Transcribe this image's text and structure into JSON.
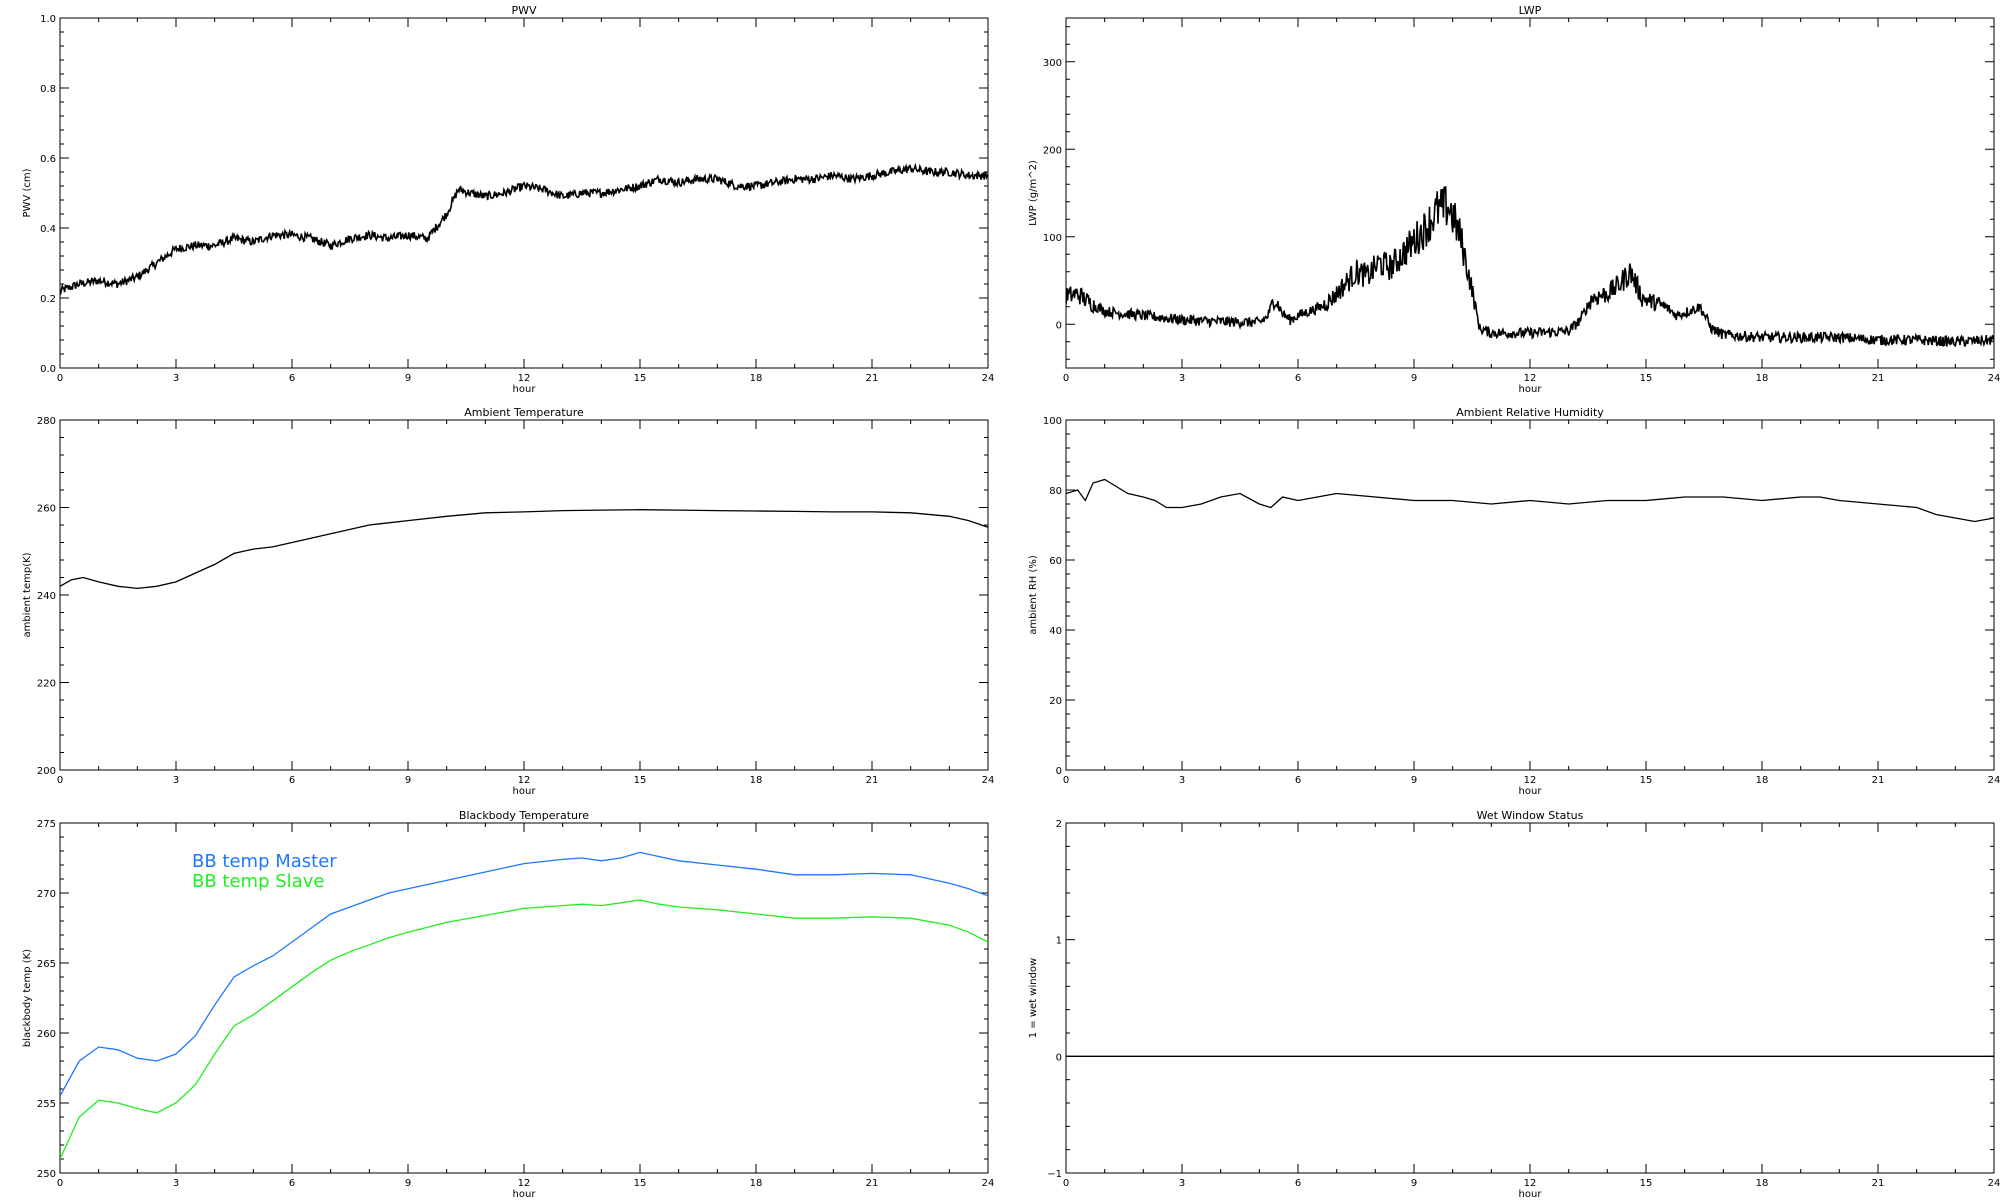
{
  "chart_data": [
    {
      "id": "pwv",
      "type": "line",
      "title": "PWV",
      "xlabel": "hour",
      "ylabel": "PWV (cm)",
      "xlim": [
        0,
        24
      ],
      "ylim": [
        0.0,
        1.0
      ],
      "xticks": [
        "0",
        "3",
        "6",
        "9",
        "12",
        "15",
        "18",
        "21",
        "24"
      ],
      "yticks": [
        "0.0",
        "0.2",
        "0.4",
        "0.6",
        "0.8",
        "1.0"
      ],
      "series": [
        {
          "color": "#000000",
          "noisy": true,
          "x": [
            0,
            0.5,
            1,
            1.5,
            2,
            2.5,
            3,
            3.5,
            4,
            4.5,
            5,
            5.5,
            6,
            6.5,
            7,
            7.5,
            8,
            8.5,
            9,
            9.5,
            10,
            10.3,
            10.6,
            11,
            11.5,
            12,
            12.5,
            13,
            13.5,
            14,
            14.5,
            15,
            15.5,
            16,
            16.5,
            17,
            17.5,
            18,
            18.5,
            19,
            19.5,
            20,
            20.5,
            21,
            21.5,
            22,
            22.5,
            23,
            23.5,
            24
          ],
          "y": [
            0.22,
            0.24,
            0.25,
            0.24,
            0.26,
            0.3,
            0.34,
            0.35,
            0.35,
            0.37,
            0.36,
            0.38,
            0.38,
            0.37,
            0.35,
            0.37,
            0.38,
            0.37,
            0.38,
            0.37,
            0.44,
            0.51,
            0.5,
            0.49,
            0.5,
            0.52,
            0.51,
            0.49,
            0.5,
            0.5,
            0.51,
            0.52,
            0.54,
            0.53,
            0.54,
            0.54,
            0.52,
            0.52,
            0.53,
            0.54,
            0.54,
            0.55,
            0.54,
            0.55,
            0.56,
            0.57,
            0.56,
            0.56,
            0.55,
            0.55
          ]
        }
      ]
    },
    {
      "id": "lwp",
      "type": "line",
      "title": "LWP",
      "xlabel": "hour",
      "ylabel": "LWP (g/m^2)",
      "xlim": [
        0,
        24
      ],
      "ylim": [
        -50,
        350
      ],
      "xticks": [
        "0",
        "3",
        "6",
        "9",
        "12",
        "15",
        "18",
        "21",
        "24"
      ],
      "yticks": [
        "0",
        "100",
        "200",
        "300"
      ],
      "ytick_values": [
        0,
        100,
        200,
        300
      ],
      "series": [
        {
          "color": "#000000",
          "noisy": true,
          "x": [
            0,
            0.3,
            0.6,
            1,
            1.5,
            2,
            3,
            4,
            5,
            5.2,
            5.4,
            5.6,
            5.8,
            6,
            6.3,
            6.6,
            6.9,
            7.2,
            7.5,
            7.8,
            8.1,
            8.4,
            8.7,
            9,
            9.3,
            9.6,
            9.9,
            10.2,
            10.5,
            10.7,
            11,
            12,
            13,
            13.3,
            13.6,
            14,
            14.3,
            14.6,
            14.9,
            15.2,
            15.5,
            15.8,
            16.1,
            16.4,
            16.7,
            17,
            18,
            19,
            20,
            21,
            22,
            23,
            24
          ],
          "y": [
            32,
            35,
            25,
            15,
            12,
            10,
            5,
            3,
            2,
            8,
            30,
            12,
            5,
            10,
            15,
            20,
            30,
            45,
            60,
            55,
            70,
            65,
            80,
            95,
            110,
            130,
            135,
            100,
            40,
            -5,
            -10,
            -10,
            -8,
            5,
            30,
            35,
            45,
            60,
            30,
            25,
            20,
            10,
            15,
            20,
            -5,
            -12,
            -15,
            -15,
            -15,
            -18,
            -18,
            -20,
            -18
          ]
        }
      ]
    },
    {
      "id": "ambient-temp",
      "type": "line",
      "title": "Ambient Temperature",
      "xlabel": "hour",
      "ylabel": "ambient temp(K)",
      "xlim": [
        0,
        24
      ],
      "ylim": [
        200,
        280
      ],
      "xticks": [
        "0",
        "3",
        "6",
        "9",
        "12",
        "15",
        "18",
        "21",
        "24"
      ],
      "yticks": [
        "200",
        "220",
        "240",
        "260",
        "280"
      ],
      "series": [
        {
          "color": "#000000",
          "x": [
            0,
            0.3,
            0.6,
            1,
            1.5,
            2,
            2.5,
            3,
            3.5,
            4,
            4.5,
            5,
            5.5,
            6,
            6.5,
            7,
            7.5,
            8,
            8.5,
            9,
            10,
            11,
            12,
            13,
            14,
            15,
            16,
            17,
            18,
            19,
            20,
            21,
            22,
            23,
            23.5,
            24
          ],
          "y": [
            242,
            243.5,
            244,
            243,
            242,
            241.5,
            242,
            243,
            245,
            247,
            249.5,
            250.5,
            251,
            252,
            253,
            254,
            255,
            256,
            256.5,
            257,
            258,
            258.8,
            259,
            259.3,
            259.4,
            259.5,
            259.4,
            259.3,
            259.2,
            259.1,
            259,
            259,
            258.8,
            258,
            257,
            255.5
          ]
        }
      ]
    },
    {
      "id": "ambient-rh",
      "type": "line",
      "title": "Ambient Relative Humidity",
      "xlabel": "hour",
      "ylabel": "ambient RH (%)",
      "xlim": [
        0,
        24
      ],
      "ylim": [
        0,
        100
      ],
      "xticks": [
        "0",
        "3",
        "6",
        "9",
        "12",
        "15",
        "18",
        "21",
        "24"
      ],
      "yticks": [
        "0",
        "20",
        "40",
        "60",
        "80",
        "100"
      ],
      "series": [
        {
          "color": "#000000",
          "x": [
            0,
            0.3,
            0.5,
            0.7,
            1,
            1.3,
            1.6,
            2,
            2.3,
            2.6,
            3,
            3.5,
            4,
            4.5,
            5,
            5.3,
            5.6,
            6,
            7,
            8,
            9,
            10,
            11,
            12,
            13,
            14,
            15,
            16,
            17,
            18,
            19,
            19.5,
            20,
            21,
            22,
            22.5,
            23,
            23.5,
            24
          ],
          "y": [
            79,
            80,
            77,
            82,
            83,
            81,
            79,
            78,
            77,
            75,
            75,
            76,
            78,
            79,
            76,
            75,
            78,
            77,
            79,
            78,
            77,
            77,
            76,
            77,
            76,
            77,
            77,
            78,
            78,
            77,
            78,
            78,
            77,
            76,
            75,
            73,
            72,
            71,
            72
          ]
        }
      ]
    },
    {
      "id": "blackbody-temp",
      "type": "line",
      "title": "Blackbody Temperature",
      "xlabel": "hour",
      "ylabel": "blackbody temp (K)",
      "xlim": [
        0,
        24
      ],
      "ylim": [
        250,
        275
      ],
      "xticks": [
        "0",
        "3",
        "6",
        "9",
        "12",
        "15",
        "18",
        "21",
        "24"
      ],
      "yticks": [
        "250",
        "255",
        "260",
        "265",
        "270",
        "275"
      ],
      "legend_placement": "top-left",
      "series": [
        {
          "name": "BB temp Master",
          "color": "#1f78ff",
          "x": [
            0,
            0.5,
            1,
            1.5,
            2,
            2.5,
            3,
            3.5,
            4,
            4.5,
            5,
            5.5,
            6,
            6.5,
            7,
            7.5,
            8,
            8.5,
            9,
            10,
            11,
            12,
            13,
            13.5,
            14,
            14.5,
            15,
            15.5,
            16,
            17,
            18,
            19,
            20,
            21,
            22,
            23,
            23.5,
            24
          ],
          "y": [
            255.5,
            258,
            259,
            258.8,
            258.2,
            258,
            258.5,
            259.8,
            262,
            264,
            264.8,
            265.5,
            266.5,
            267.5,
            268.5,
            269,
            269.5,
            270,
            270.3,
            270.9,
            271.5,
            272.1,
            272.4,
            272.5,
            272.3,
            272.5,
            272.9,
            272.6,
            272.3,
            272,
            271.7,
            271.3,
            271.3,
            271.4,
            271.3,
            270.7,
            270.3,
            269.8
          ]
        },
        {
          "name": "BB temp Slave",
          "color": "#22ee22",
          "x": [
            0,
            0.5,
            1,
            1.5,
            2,
            2.5,
            3,
            3.5,
            4,
            4.5,
            5,
            5.5,
            6,
            6.5,
            7,
            7.5,
            8,
            8.5,
            9,
            10,
            11,
            12,
            13,
            13.5,
            14,
            14.5,
            15,
            15.5,
            16,
            17,
            18,
            19,
            20,
            21,
            22,
            23,
            23.5,
            24
          ],
          "y": [
            251,
            254,
            255.2,
            255,
            254.6,
            254.3,
            255,
            256.3,
            258.5,
            260.5,
            261.3,
            262.3,
            263.3,
            264.3,
            265.2,
            265.8,
            266.3,
            266.8,
            267.2,
            267.9,
            268.4,
            268.9,
            269.1,
            269.2,
            269.1,
            269.3,
            269.5,
            269.2,
            269,
            268.8,
            268.5,
            268.2,
            268.2,
            268.3,
            268.2,
            267.7,
            267.2,
            266.5
          ]
        }
      ]
    },
    {
      "id": "wet-window",
      "type": "line",
      "title": "Wet Window Status",
      "xlabel": "hour",
      "ylabel": "1 = wet window",
      "xlim": [
        0,
        24
      ],
      "ylim": [
        -1,
        2
      ],
      "xticks": [
        "0",
        "3",
        "6",
        "9",
        "12",
        "15",
        "18",
        "21",
        "24"
      ],
      "yticks": [
        "−1",
        "0",
        "1",
        "2"
      ],
      "series": [
        {
          "color": "#000000",
          "x": [
            0,
            24
          ],
          "y": [
            0,
            0
          ]
        }
      ]
    }
  ]
}
